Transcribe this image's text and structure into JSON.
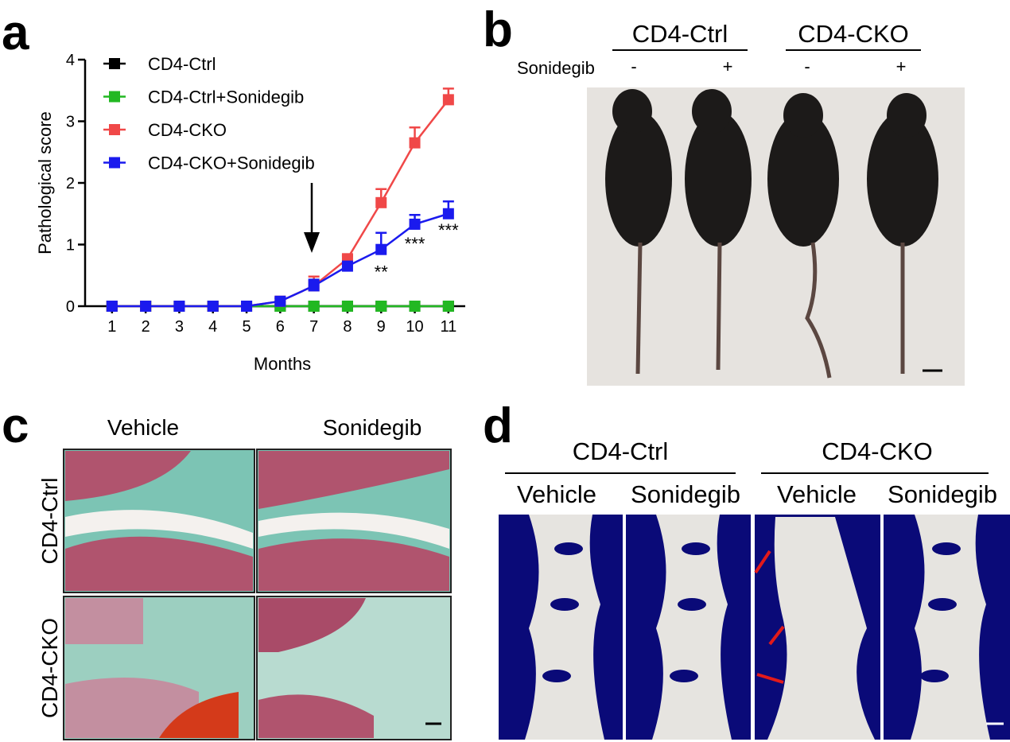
{
  "panel_labels": [
    "a",
    "b",
    "c",
    "d"
  ],
  "chart_data": {
    "type": "line",
    "ylabel": "Pathological score",
    "xlabel": "Months",
    "x": [
      1,
      2,
      3,
      4,
      5,
      6,
      7,
      8,
      9,
      10,
      11
    ],
    "xlim": [
      0.2,
      11.5
    ],
    "xticks": [
      1,
      2,
      3,
      4,
      5,
      6,
      7,
      8,
      9,
      10,
      11
    ],
    "ylim": [
      0,
      4
    ],
    "yticks": [
      0,
      1,
      2,
      3,
      4
    ],
    "series": [
      {
        "name": "CD4-Ctrl",
        "color": "#000000",
        "values": [
          0,
          0,
          0,
          0,
          0,
          0,
          0,
          0,
          0,
          0,
          0
        ]
      },
      {
        "name": "CD4-Ctrl+Sonidegib",
        "color": "#22b822",
        "values": [
          0,
          0,
          0,
          0,
          0,
          0,
          0,
          0,
          0,
          0,
          0
        ]
      },
      {
        "name": "CD4-CKO",
        "color": "#f04848",
        "values": [
          0,
          0,
          0,
          0,
          0,
          0.08,
          0.33,
          0.77,
          1.68,
          2.65,
          3.35
        ],
        "errors": [
          0,
          0,
          0,
          0,
          0,
          0.05,
          0.15,
          0.05,
          0.22,
          0.25,
          0.18
        ]
      },
      {
        "name": "CD4-CKO+Sonidegib",
        "color": "#1a1aee",
        "values": [
          0,
          0,
          0,
          0,
          0,
          0.08,
          0.33,
          0.65,
          0.92,
          1.33,
          1.5
        ],
        "errors": [
          0,
          0,
          0,
          0,
          0,
          0.05,
          0.1,
          0.05,
          0.27,
          0.15,
          0.2
        ]
      }
    ],
    "annotations": [
      {
        "text": "**",
        "x": 9
      },
      {
        "text": "***",
        "x": 10
      },
      {
        "text": "***",
        "x": 11
      }
    ]
  },
  "panel_b": {
    "groups": [
      "CD4-Ctrl",
      "CD4-CKO"
    ],
    "treatment_label": "Sonidegib",
    "signs": [
      "-",
      "+",
      "-",
      "+"
    ]
  },
  "panel_c": {
    "columns": [
      "Vehicle",
      "Sonidegib"
    ],
    "rows": [
      "CD4-Ctrl",
      "CD4-CKO"
    ]
  },
  "panel_d": {
    "groups": [
      "CD4-Ctrl",
      "CD4-CKO"
    ],
    "columns": [
      "Vehicle",
      "Sonidegib",
      "Vehicle",
      "Sonidegib"
    ]
  }
}
